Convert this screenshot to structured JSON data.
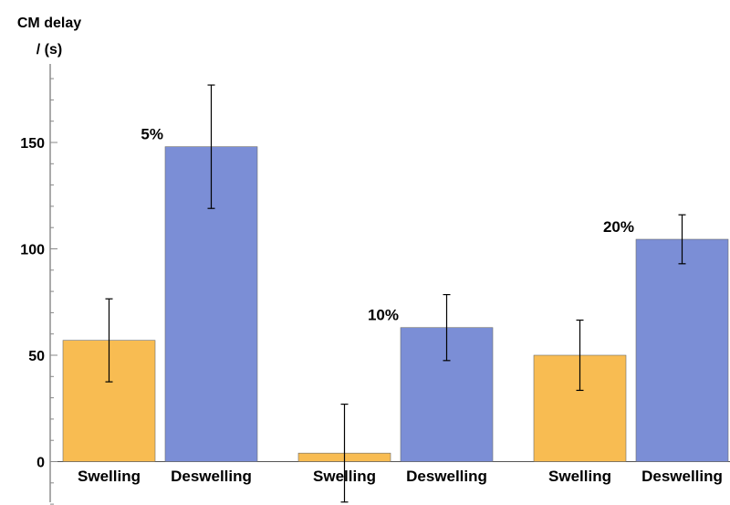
{
  "chart_data": {
    "type": "bar",
    "ylabel": [
      "CM delay",
      "/ (s)"
    ],
    "xlabel": "",
    "ylim": [
      -20,
      180
    ],
    "yticks": [
      0,
      50,
      100,
      150
    ],
    "categories": [
      "Swelling",
      "Deswelling",
      "Swelling",
      "Deswelling",
      "Swelling",
      "Deswelling"
    ],
    "groups": [
      {
        "label": "5%",
        "bars": [
          0,
          1
        ]
      },
      {
        "label": "10%",
        "bars": [
          2,
          3
        ]
      },
      {
        "label": "20%",
        "bars": [
          4,
          5
        ]
      }
    ],
    "values": [
      57,
      148,
      4,
      63,
      50,
      104.5
    ],
    "errors": [
      19.5,
      29,
      23,
      15.5,
      16.5,
      11.5
    ],
    "colors": {
      "Swelling": "#f8bc52",
      "Deswelling": "#7b8ed6"
    },
    "grid": false,
    "legend": "none"
  }
}
